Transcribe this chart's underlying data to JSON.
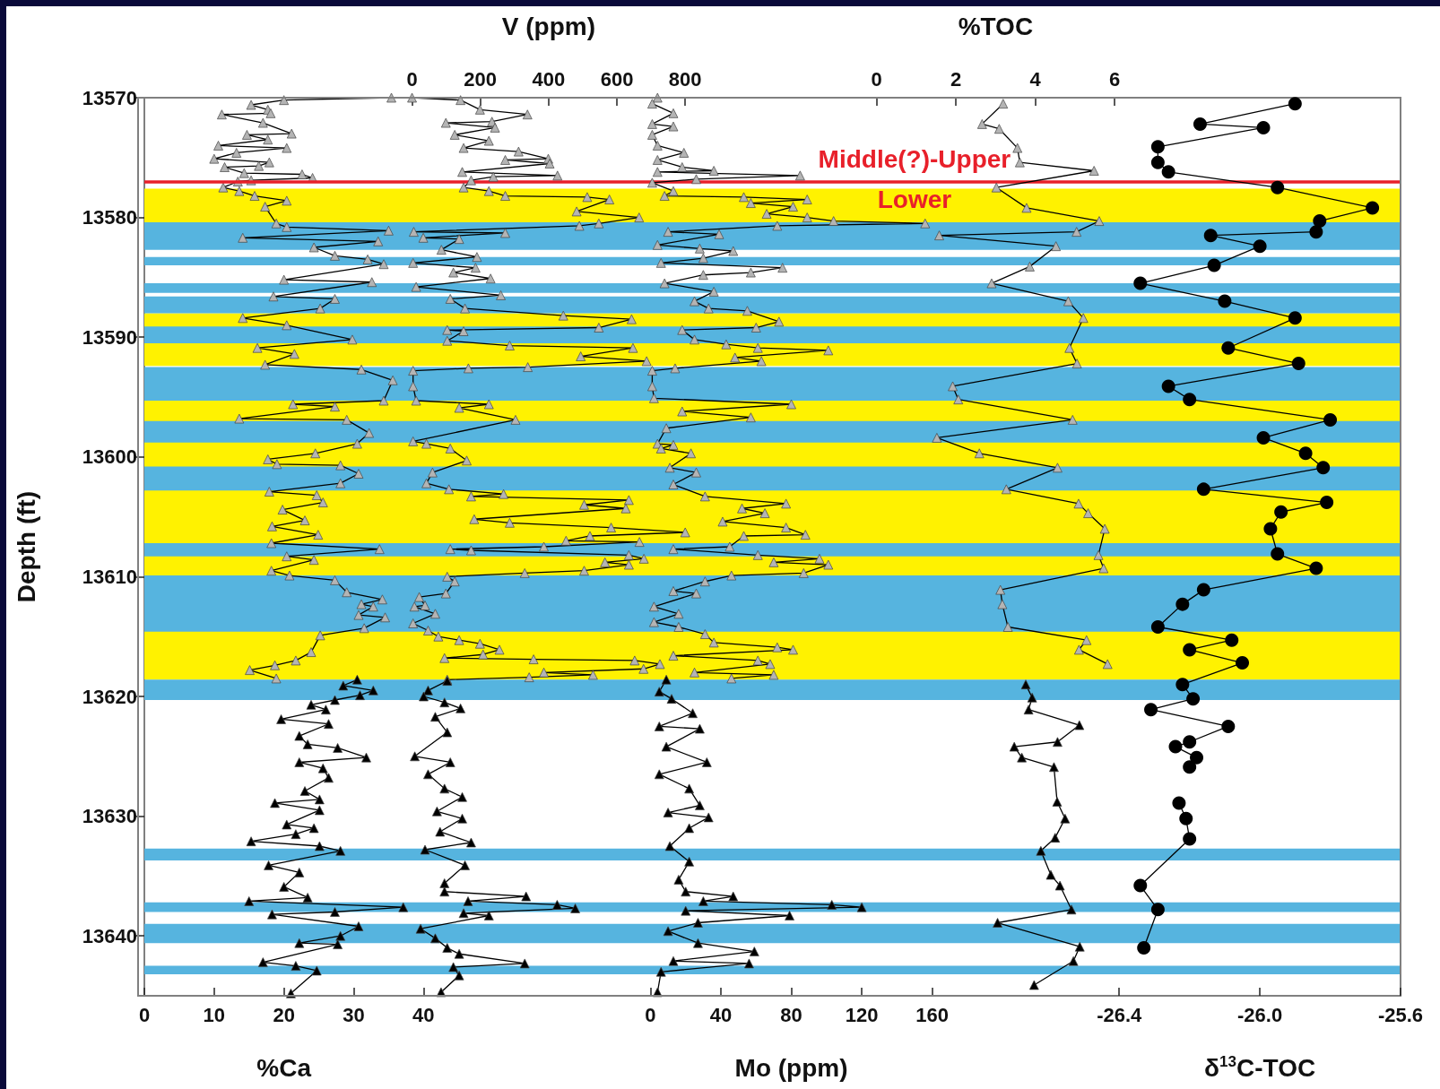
{
  "chart_data": [
    {
      "type": "line",
      "ylabel": "Depth (ft)",
      "xlabel": "%Ca",
      "x2label": "V (ppm)",
      "ylim": [
        13645,
        13570
      ],
      "yticks": [
        13570,
        13580,
        13590,
        13600,
        13610,
        13620,
        13630,
        13640
      ],
      "xlim": [
        0,
        180
      ],
      "xticks": [
        0,
        10,
        20,
        30,
        40
      ],
      "x2lim": [
        -784,
        2895
      ],
      "x2ticks": [
        0,
        200,
        400,
        600,
        800
      ],
      "grid": false,
      "series": [
        {
          "color": "#b4b4b4",
          "marker": "triangle",
          "x": [
            35.4,
            20.0,
            15.3,
            17.7,
            18.1,
            11.1,
            17.0,
            21.1,
            14.7,
            17.7,
            10.6,
            20.4,
            13.2,
            10.0,
            17.9,
            16.4,
            11.5,
            14.3,
            22.6,
            24.1,
            15.3,
            13.4,
            11.3,
            13.6,
            15.8,
            20.4,
            17.3,
            18.9,
            20.4,
            35.0,
            14.1,
            33.5,
            24.3,
            27.3,
            32.0,
            34.3,
            20.0,
            32.6,
            18.5,
            27.3,
            25.2,
            14.1,
            20.4,
            29.8,
            16.2,
            21.5,
            17.3,
            31.1,
            35.6,
            34.3,
            21.3,
            27.3,
            13.6,
            29.0,
            32.2,
            30.5,
            24.5,
            17.7,
            19.0,
            28.1,
            30.7,
            28.1,
            17.9,
            24.7,
            25.6,
            19.8,
            23.0,
            18.3,
            24.9,
            18.2,
            33.7,
            20.4,
            24.3,
            18.2,
            20.8,
            27.3,
            29.0,
            34.1,
            31.1,
            32.8,
            30.7,
            34.5,
            31.5,
            25.2,
            23.9,
            21.7,
            18.7,
            15.1,
            18.9
          ],
          "values": [
            13570.0,
            13570.2,
            13570.6,
            13571.0,
            13571.3,
            13571.4,
            13572.1,
            13573.0,
            13573.1,
            13573.5,
            13574.0,
            13574.2,
            13574.6,
            13575.1,
            13575.4,
            13575.7,
            13575.8,
            13576.3,
            13576.4,
            13576.7,
            13576.9,
            13577.0,
            13577.5,
            13577.8,
            13578.2,
            13578.6,
            13579.1,
            13580.5,
            13580.8,
            13581.1,
            13581.7,
            13582.0,
            13582.5,
            13583.2,
            13583.5,
            13583.9,
            13585.2,
            13585.4,
            13586.6,
            13586.8,
            13587.6,
            13588.4,
            13589.0,
            13590.2,
            13590.9,
            13591.4,
            13592.3,
            13592.7,
            13593.6,
            13595.3,
            13595.6,
            13595.8,
            13596.8,
            13596.9,
            13598.0,
            13598.9,
            13599.7,
            13600.2,
            13600.6,
            13600.7,
            13601.4,
            13602.2,
            13602.9,
            13603.2,
            13603.8,
            13604.4,
            13605.3,
            13605.8,
            13606.5,
            13607.2,
            13607.7,
            13608.3,
            13608.6,
            13609.5,
            13609.9,
            13610.3,
            13611.3,
            13611.9,
            13612.3,
            13612.5,
            13613.2,
            13613.4,
            13614.3,
            13614.9,
            13616.3,
            13617.0,
            13617.4,
            13617.8,
            13618.5
          ]
        },
        {
          "color": "#000000",
          "marker": "triangle",
          "x": [
            30.5,
            28.5,
            32.8,
            30.9,
            27.3,
            23.9,
            26.0,
            19.6,
            26.4,
            22.2,
            23.4,
            27.7,
            31.8,
            22.2,
            25.6,
            26.4,
            23.0,
            25.1,
            18.7,
            25.1,
            20.4,
            24.3,
            21.7,
            15.3,
            25.1,
            28.1,
            17.8,
            22.2,
            20.0,
            23.4,
            15.0,
            37.1,
            27.3,
            18.3,
            30.7,
            28.1,
            22.2,
            27.7,
            17.0,
            21.7,
            24.7,
            21.0
          ],
          "values": [
            13618.6,
            13619.1,
            13619.5,
            13619.9,
            13620.3,
            13620.7,
            13621.1,
            13621.9,
            13622.3,
            13623.3,
            13624.0,
            13624.3,
            13625.1,
            13625.5,
            13626.0,
            13626.8,
            13627.9,
            13628.6,
            13628.9,
            13629.5,
            13630.7,
            13631.0,
            13631.5,
            13632.1,
            13632.5,
            13632.9,
            13634.1,
            13634.7,
            13635.9,
            13636.8,
            13637.1,
            13637.6,
            13638.0,
            13638.2,
            13639.2,
            13640.0,
            13640.6,
            13640.7,
            13642.2,
            13642.5,
            13642.9,
            13644.8
          ]
        },
        {
          "axis": "x2",
          "color": "#b4b4b4",
          "marker": "triangle",
          "x": [
            0,
            142,
            199,
            338,
            234,
            99,
            243,
            125,
            225,
            151,
            312,
            399,
            273,
            403,
            147,
            426,
            238,
            173,
            151,
            225,
            273,
            513,
            578,
            482,
            665,
            547,
            490,
            5,
            273,
            33,
            138,
            86,
            190,
            3,
            186,
            121,
            230,
            12,
            260,
            112,
            155,
            443,
            643,
            547,
            103,
            151,
            103,
            286,
            647,
            494,
            687,
            339,
            165,
            3,
            3,
            12,
            225,
            138,
            303,
            3,
            42,
            112,
            160,
            60,
            42,
            108,
            268,
            173,
            635,
            504,
            626,
            182,
            286,
            583,
            800,
            521,
            451,
            666,
            386,
            112,
            173,
            635,
            679,
            565,
            635,
            504,
            330,
            103,
            125,
            99,
            21,
            38,
            7,
            68,
            3,
            47,
            77,
            138,
            199,
            256,
            208,
            95,
            356,
            652,
            726,
            678,
            386,
            530,
            343,
            103
          ],
          "values": [
            13570.0,
            13570.2,
            13571.0,
            13571.4,
            13572.0,
            13572.1,
            13572.5,
            13573.1,
            13573.6,
            13574.2,
            13574.5,
            13575.1,
            13575.2,
            13575.5,
            13576.2,
            13576.5,
            13576.6,
            13576.9,
            13577.5,
            13577.8,
            13578.2,
            13578.3,
            13578.5,
            13579.5,
            13580.0,
            13580.5,
            13580.7,
            13581.2,
            13581.3,
            13581.7,
            13581.8,
            13582.7,
            13583.3,
            13583.8,
            13584.2,
            13584.6,
            13585.1,
            13585.8,
            13586.5,
            13586.8,
            13587.6,
            13588.2,
            13588.5,
            13589.2,
            13589.4,
            13589.5,
            13590.3,
            13590.7,
            13590.9,
            13591.6,
            13592.0,
            13592.5,
            13592.6,
            13592.8,
            13594.1,
            13595.3,
            13595.6,
            13595.9,
            13596.9,
            13598.7,
            13598.9,
            13599.3,
            13600.3,
            13601.3,
            13602.2,
            13602.7,
            13603.1,
            13603.3,
            13603.6,
            13604.0,
            13604.3,
            13605.2,
            13605.5,
            13605.9,
            13606.3,
            13606.6,
            13607.0,
            13607.1,
            13607.5,
            13607.7,
            13607.8,
            13608.2,
            13608.5,
            13608.8,
            13609.0,
            13609.5,
            13609.7,
            13610.0,
            13610.4,
            13611.4,
            13611.7,
            13612.4,
            13612.5,
            13613.1,
            13613.9,
            13614.5,
            13615.0,
            13615.3,
            13615.6,
            13616.1,
            13616.5,
            13616.8,
            13616.9,
            13617.0,
            13617.3,
            13617.7,
            13618.0,
            13618.2,
            13618.4,
            13618.6
          ]
        },
        {
          "axis": "x2",
          "color": "#000000",
          "marker": "triangle",
          "x": [
            103,
            47,
            34,
            95,
            142,
            68,
            103,
            8,
            112,
            47,
            95,
            147,
            73,
            147,
            82,
            173,
            38,
            155,
            95,
            95,
            334,
            164,
            425,
            478,
            151,
            225,
            25,
            68,
            103,
            138,
            330,
            121,
            138,
            85
          ],
          "values": [
            13618.7,
            13619.5,
            13620.0,
            13620.5,
            13621.0,
            13621.7,
            13623.0,
            13625.0,
            13625.5,
            13626.5,
            13627.7,
            13628.4,
            13629.6,
            13630.2,
            13631.3,
            13632.2,
            13632.8,
            13634.1,
            13635.6,
            13636.3,
            13636.7,
            13637.1,
            13637.4,
            13637.7,
            13638.1,
            13638.3,
            13639.4,
            13640.2,
            13641.0,
            13641.5,
            13642.3,
            13642.6,
            13643.3,
            13644.7
          ]
        }
      ],
      "bands": [
        {
          "axis": "y",
          "from": 13577.6,
          "to": 13580.4,
          "color": "#fff200"
        },
        {
          "axis": "y",
          "from": 13588.0,
          "to": 13592.4,
          "color": "#fff200"
        },
        {
          "axis": "y",
          "from": 13592.6,
          "to": 13618.6,
          "color": "#fff200"
        },
        {
          "axis": "y",
          "from": 13580.4,
          "to": 13582.7,
          "color": "#56b4df"
        },
        {
          "axis": "y",
          "from": 13583.3,
          "to": 13584.0,
          "color": "#56b4df"
        },
        {
          "axis": "y",
          "from": 13585.5,
          "to": 13586.3,
          "color": "#56b4df"
        },
        {
          "axis": "y",
          "from": 13586.6,
          "to": 13588.0,
          "color": "#56b4df"
        },
        {
          "axis": "y",
          "from": 13589.1,
          "to": 13590.5,
          "color": "#56b4df"
        },
        {
          "axis": "y",
          "from": 13592.5,
          "to": 13595.3,
          "color": "#56b4df"
        },
        {
          "axis": "y",
          "from": 13597.0,
          "to": 13598.8,
          "color": "#56b4df"
        },
        {
          "axis": "y",
          "from": 13600.8,
          "to": 13602.8,
          "color": "#56b4df"
        },
        {
          "axis": "y",
          "from": 13607.2,
          "to": 13608.3,
          "color": "#56b4df"
        },
        {
          "axis": "y",
          "from": 13609.9,
          "to": 13614.6,
          "color": "#56b4df"
        },
        {
          "axis": "y",
          "from": 13618.6,
          "to": 13620.3,
          "color": "#56b4df"
        },
        {
          "axis": "y",
          "from": 13632.7,
          "to": 13633.7,
          "color": "#56b4df"
        },
        {
          "axis": "y",
          "from": 13637.2,
          "to": 13638.0,
          "color": "#56b4df"
        },
        {
          "axis": "y",
          "from": 13639.0,
          "to": 13640.6,
          "color": "#56b4df"
        },
        {
          "axis": "y",
          "from": 13642.5,
          "to": 13643.2,
          "color": "#56b4df"
        }
      ],
      "ref_lines": [
        {
          "axis": "y",
          "value": 13577,
          "label": "Middle(?)-Upper",
          "color": "#e8202a",
          "line_style": "solid"
        }
      ],
      "annotations": [
        "Lower"
      ]
    },
    {
      "type": "line",
      "xlabel": "Mo (ppm)",
      "x2label": "%TOC",
      "tick_labels": "x",
      "ylim": [
        13645,
        13570
      ],
      "xlim": [
        -291,
        426
      ],
      "xticks": [
        0,
        40,
        80,
        120,
        160
      ],
      "x2lim": [
        -18.6,
        13.2
      ],
      "x2ticks": [
        0,
        2,
        4,
        6
      ],
      "grid": false,
      "series": [
        {
          "color": "#b4b4b4",
          "marker": "triangle",
          "x": [
            4,
            1,
            13,
            1,
            13,
            1,
            4,
            19,
            4,
            18,
            36,
            4,
            85,
            26,
            1,
            13,
            8,
            53,
            89,
            57,
            81,
            66,
            89,
            104,
            156,
            72,
            10,
            39,
            4,
            28,
            47,
            30,
            6,
            75,
            57,
            30,
            8,
            36,
            25,
            33,
            55,
            73,
            60,
            18,
            25,
            43,
            61,
            101,
            48,
            63,
            14,
            1,
            1,
            2,
            80,
            18,
            57,
            9,
            4,
            13,
            6,
            23,
            11,
            26,
            13,
            31,
            77,
            52,
            65,
            41,
            77,
            88,
            53,
            45,
            13,
            61,
            96,
            70,
            101,
            87,
            46,
            31,
            13,
            26,
            2,
            16,
            2,
            16,
            31,
            36,
            72,
            81,
            13,
            61,
            68,
            25,
            70,
            46
          ],
          "values": [
            13570.0,
            13570.5,
            13571.3,
            13572.2,
            13572.4,
            13573.1,
            13574.0,
            13574.6,
            13575.2,
            13575.8,
            13576.1,
            13576.2,
            13576.5,
            13576.8,
            13577.1,
            13577.8,
            13578.2,
            13578.3,
            13578.5,
            13578.8,
            13579.1,
            13579.7,
            13580.0,
            13580.3,
            13580.5,
            13580.7,
            13581.2,
            13581.4,
            13582.3,
            13582.6,
            13582.8,
            13583.4,
            13583.8,
            13584.2,
            13584.6,
            13584.8,
            13585.5,
            13586.2,
            13587.0,
            13587.6,
            13587.8,
            13588.7,
            13589.2,
            13589.4,
            13590.2,
            13590.6,
            13590.9,
            13591.1,
            13591.7,
            13592.0,
            13592.6,
            13592.8,
            13594.1,
            13595.1,
            13595.6,
            13596.2,
            13596.7,
            13597.6,
            13598.9,
            13599.0,
            13599.3,
            13599.7,
            13600.9,
            13601.3,
            13602.3,
            13603.3,
            13603.9,
            13604.3,
            13604.7,
            13605.4,
            13605.9,
            13606.5,
            13606.6,
            13607.5,
            13607.7,
            13608.2,
            13608.5,
            13608.8,
            13609.0,
            13609.7,
            13609.9,
            13610.4,
            13611.2,
            13611.4,
            13612.5,
            13613.1,
            13613.8,
            13614.2,
            13614.8,
            13615.5,
            13615.9,
            13616.1,
            13616.6,
            13617.0,
            13617.3,
            13618.0,
            13618.2,
            13618.5
          ]
        },
        {
          "color": "#000000",
          "marker": "triangle",
          "x": [
            9,
            5,
            12,
            24,
            5,
            28,
            9,
            32,
            5,
            22,
            28,
            10,
            33,
            22,
            11,
            22,
            16,
            20,
            47,
            30,
            103,
            120,
            20,
            79,
            27,
            10,
            27,
            59,
            13,
            56,
            6,
            4
          ],
          "values": [
            13618.6,
            13619.6,
            13620.2,
            13621.4,
            13622.5,
            13622.7,
            13624.2,
            13625.5,
            13626.5,
            13627.7,
            13629.1,
            13629.7,
            13630.1,
            13631.0,
            13632.5,
            13633.8,
            13635.3,
            13636.3,
            13636.7,
            13637.1,
            13637.4,
            13637.6,
            13637.9,
            13638.3,
            13638.9,
            13639.6,
            13640.6,
            13641.3,
            13642.1,
            13642.3,
            13643.0,
            13644.7
          ]
        },
        {
          "axis": "x2",
          "color": "#b4b4b4",
          "marker": "triangle",
          "x": [
            3.19,
            2.66,
            3.09,
            3.55,
            3.61,
            5.48,
            3.02,
            3.78,
            5.61,
            5.04,
            1.58,
            4.52,
            3.86,
            2.9,
            4.83,
            5.21,
            4.86,
            5.05,
            1.92,
            2.06,
            4.94,
            1.52,
            2.59,
            4.56,
            3.27,
            5.09,
            5.33,
            5.75,
            5.59,
            5.72,
            3.12,
            3.17,
            3.31,
            5.29,
            5.1,
            5.82
          ],
          "values": [
            13570.5,
            13572.2,
            13572.6,
            13574.2,
            13575.4,
            13576.1,
            13577.5,
            13579.2,
            13580.3,
            13581.2,
            13581.5,
            13582.4,
            13584.1,
            13585.5,
            13587.0,
            13588.4,
            13590.9,
            13592.2,
            13594.1,
            13595.2,
            13596.9,
            13598.4,
            13599.7,
            13600.9,
            13602.7,
            13603.9,
            13604.7,
            13606.0,
            13608.2,
            13609.3,
            13611.1,
            13612.3,
            13614.2,
            13615.3,
            13616.1,
            13617.3
          ]
        },
        {
          "axis": "x2",
          "color": "#000000",
          "marker": "triangle",
          "x": [
            3.76,
            3.92,
            3.83,
            5.11,
            4.56,
            3.47,
            3.66,
            4.47,
            4.55,
            4.75,
            4.5,
            4.14,
            4.39,
            4.62,
            4.91,
            3.05,
            5.12,
            4.96,
            3.97
          ],
          "values": [
            13619.0,
            13620.1,
            13621.1,
            13622.4,
            13623.8,
            13624.2,
            13625.1,
            13625.9,
            13628.8,
            13630.2,
            13631.8,
            13632.9,
            13634.9,
            13635.8,
            13637.8,
            13638.9,
            13640.9,
            13642.1,
            13644.1
          ]
        }
      ]
    },
    {
      "type": "line",
      "xlabel": "δ$^{13}$C-TOC",
      "tick_labels": "x",
      "ylim": [
        13645,
        13570
      ],
      "xlim": [
        -29.19,
        -25.6
      ],
      "xticks": [
        -26.4,
        {
          "value": -26,
          "label": "-26.0"
        },
        -25.6
      ],
      "grid": false,
      "series": [
        {
          "color": "#000000",
          "marker": "circle",
          "x": [
            -25.9,
            -26.17,
            -25.99,
            -26.29,
            -26.29,
            -26.26,
            -25.95,
            -25.68,
            -25.83,
            -25.84,
            -26.14,
            -26.0,
            -26.13,
            -26.34,
            -26.1,
            -25.9,
            -26.09,
            -25.89,
            -26.26,
            -26.2,
            -25.8,
            -25.99,
            -25.87,
            -25.82,
            -26.16,
            -25.81,
            -25.94,
            -25.97,
            -25.95,
            -25.84,
            -26.16,
            -26.22,
            -26.29,
            -26.08,
            -26.2,
            -26.05,
            -26.22,
            -26.19,
            -26.31,
            -26.09,
            -26.2,
            -26.24,
            -26.18,
            -26.2,
            null,
            -26.23,
            -26.21,
            -26.2,
            -26.34,
            -26.29,
            -26.33
          ],
          "values": [
            13570.5,
            13572.2,
            13572.5,
            13574.1,
            13575.4,
            13576.2,
            13577.5,
            13579.2,
            13580.3,
            13581.2,
            13581.5,
            13582.4,
            13584.0,
            13585.5,
            13587.0,
            13588.4,
            13590.9,
            13592.2,
            13594.1,
            13595.2,
            13596.9,
            13598.4,
            13599.7,
            13600.9,
            13602.7,
            13603.8,
            13604.6,
            13606.0,
            13608.1,
            13609.3,
            13611.1,
            13612.3,
            13614.2,
            13615.3,
            13616.1,
            13617.2,
            13619.0,
            13620.2,
            13621.1,
            13622.5,
            13623.8,
            13624.2,
            13625.1,
            13625.9,
            null,
            13628.9,
            13630.2,
            13631.9,
            13635.8,
            13637.8,
            13641.0
          ]
        }
      ]
    }
  ]
}
